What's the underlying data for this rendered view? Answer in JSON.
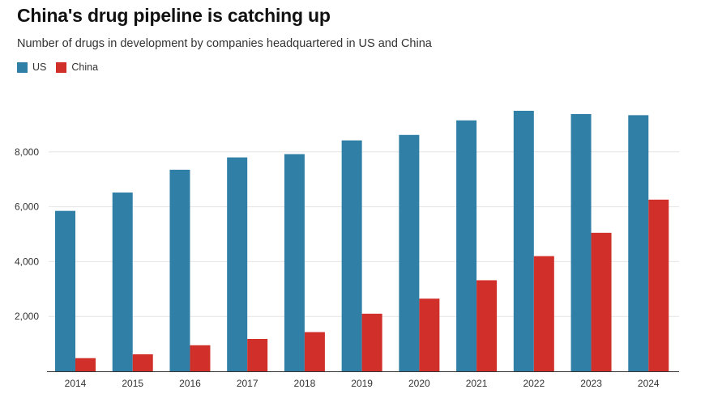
{
  "title": "China's drug pipeline is catching up",
  "subtitle": "Number of drugs in development by companies headquartered in US and China",
  "colors": {
    "US": "#2f7fa6",
    "China": "#d12f2a"
  },
  "chart_data": {
    "type": "bar",
    "categories": [
      "2014",
      "2015",
      "2016",
      "2017",
      "2018",
      "2019",
      "2020",
      "2021",
      "2022",
      "2023",
      "2024"
    ],
    "series": [
      {
        "name": "US",
        "values": [
          5850,
          6520,
          7350,
          7800,
          7920,
          8420,
          8620,
          9150,
          9500,
          9380,
          9340
        ]
      },
      {
        "name": "China",
        "values": [
          480,
          620,
          950,
          1180,
          1430,
          2100,
          2650,
          3320,
          4200,
          5050,
          6260
        ]
      }
    ],
    "yticks": [
      2000,
      4000,
      6000,
      8000
    ],
    "ytick_labels": [
      "2,000",
      "4,000",
      "6,000",
      "8,000"
    ],
    "ylim": [
      0,
      10000
    ],
    "grid": true,
    "legend": "top-left"
  }
}
